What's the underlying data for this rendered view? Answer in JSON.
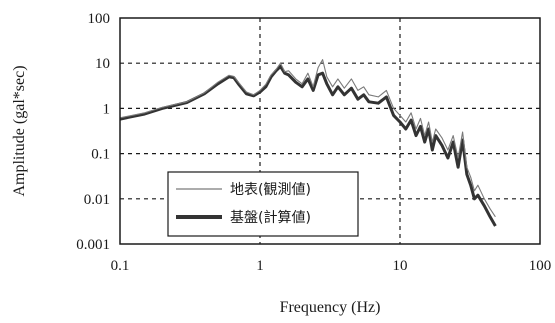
{
  "chart_data": {
    "type": "line",
    "xlabel": "Frequency (Hz)",
    "ylabel": "Amplitude (gal*sec)",
    "xscale": "log",
    "yscale": "log",
    "xlim": [
      0.1,
      100
    ],
    "ylim": [
      0.001,
      100
    ],
    "grid": true,
    "grid_style": "dashed",
    "legend_position": "bottom-left",
    "x_ticks": [
      "0.1",
      "1",
      "10",
      "100"
    ],
    "y_ticks": [
      "100",
      "10",
      "1",
      "0.1",
      "0.01",
      "0.001"
    ],
    "series": [
      {
        "name": "地表(観測値)",
        "color": "#7a7a7a",
        "style": "thin",
        "x": [
          0.1,
          0.15,
          0.2,
          0.3,
          0.4,
          0.5,
          0.6,
          0.65,
          0.7,
          0.8,
          0.9,
          1.0,
          1.1,
          1.2,
          1.3,
          1.4,
          1.5,
          1.6,
          1.8,
          2.0,
          2.2,
          2.4,
          2.6,
          2.8,
          3.0,
          3.3,
          3.6,
          4.0,
          4.5,
          5.0,
          5.5,
          6.0,
          7.0,
          8.0,
          9.0,
          10.0,
          11.0,
          12.0,
          13.0,
          14.0,
          15.0,
          16.0,
          17.0,
          18.0,
          20.0,
          22.0,
          24.0,
          26.0,
          28.0,
          30.0,
          32.0,
          34.0,
          36.0,
          40.0,
          44.0,
          48.0
        ],
        "y": [
          0.62,
          0.8,
          1.05,
          1.4,
          2.2,
          3.8,
          5.4,
          5.1,
          3.8,
          2.3,
          2.0,
          2.5,
          3.4,
          5.5,
          7.2,
          10.0,
          6.5,
          6.8,
          4.5,
          3.5,
          6.0,
          3.0,
          8.0,
          12.0,
          5.0,
          3.0,
          4.5,
          2.8,
          4.5,
          2.5,
          3.0,
          2.0,
          1.8,
          2.5,
          1.0,
          0.7,
          0.5,
          0.8,
          0.35,
          0.6,
          0.25,
          0.5,
          0.18,
          0.35,
          0.22,
          0.12,
          0.25,
          0.08,
          0.3,
          0.05,
          0.03,
          0.015,
          0.02,
          0.01,
          0.006,
          0.004
        ]
      },
      {
        "name": "基盤(計算値)",
        "color": "#333333",
        "style": "thick",
        "x": [
          0.1,
          0.15,
          0.2,
          0.3,
          0.4,
          0.5,
          0.6,
          0.65,
          0.7,
          0.8,
          0.9,
          1.0,
          1.1,
          1.2,
          1.3,
          1.4,
          1.5,
          1.6,
          1.8,
          2.0,
          2.2,
          2.4,
          2.6,
          2.8,
          3.0,
          3.3,
          3.6,
          4.0,
          4.5,
          5.0,
          5.5,
          6.0,
          7.0,
          8.0,
          9.0,
          10.0,
          11.0,
          12.0,
          13.0,
          14.0,
          15.0,
          16.0,
          17.0,
          18.0,
          20.0,
          22.0,
          24.0,
          26.0,
          28.0,
          30.0,
          32.0,
          34.0,
          36.0,
          40.0,
          44.0,
          48.0
        ],
        "y": [
          0.58,
          0.75,
          1.0,
          1.35,
          2.1,
          3.5,
          5.0,
          4.8,
          3.5,
          2.1,
          1.9,
          2.3,
          3.0,
          5.0,
          6.8,
          8.5,
          6.0,
          5.5,
          3.8,
          3.0,
          4.5,
          2.5,
          5.5,
          6.0,
          3.5,
          2.0,
          3.0,
          2.0,
          2.8,
          1.6,
          2.0,
          1.4,
          1.3,
          1.8,
          0.7,
          0.5,
          0.35,
          0.55,
          0.25,
          0.4,
          0.18,
          0.35,
          0.12,
          0.25,
          0.15,
          0.08,
          0.18,
          0.05,
          0.2,
          0.035,
          0.02,
          0.01,
          0.012,
          0.007,
          0.004,
          0.0025
        ]
      }
    ]
  }
}
